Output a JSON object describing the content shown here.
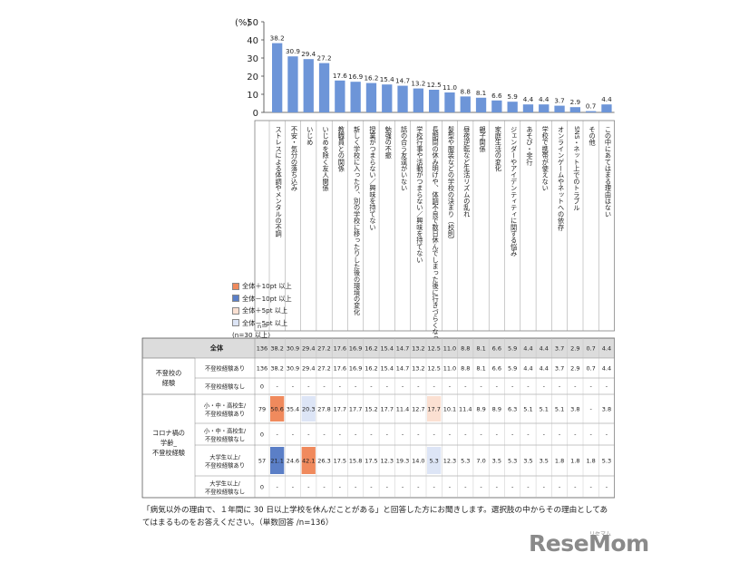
{
  "chart_data": {
    "type": "bar",
    "ylabel": "(%)",
    "ylim": [
      0,
      50
    ],
    "yticks": [
      0,
      10,
      20,
      30,
      40,
      50
    ],
    "bar_color": "#6d95d8",
    "categories": [
      "ストレスによる体調やメンタルの不調",
      "不安・気分の落ち込み",
      "いじめ",
      "いじめを除く友人関係",
      "教職員との関係",
      "新しく学校に入ったり、別の学校に移ったりした後の環境の変化",
      "授業がつまらない／興味を持てない",
      "勉強の不振",
      "話の合う友達がいない",
      "学校行事や活動がつまらない／興味を持てない",
      "長期間の休み明けや、体調不良で数日休んでしまった後に行きづらくなった",
      "髪型や服装などの学校の決まり（校則）",
      "昼夜逆転など生活リズムの乱れ",
      "親子関係",
      "家庭生活の変化",
      "ジェンダーやアイデンティティに関する悩み",
      "あそび・非行",
      "学校で携帯が使えない",
      "オンラインゲームやネットへの依存",
      "SNS・ネット上でのトラブル",
      "その他",
      "この中にあてはまる理由はない"
    ],
    "values": [
      38.2,
      30.9,
      29.4,
      27.2,
      17.6,
      16.9,
      16.2,
      15.4,
      14.7,
      13.2,
      12.5,
      11.0,
      8.8,
      8.1,
      6.6,
      5.9,
      4.4,
      4.4,
      3.7,
      2.9,
      0.7,
      4.4
    ],
    "value_labels": [
      "38.2",
      "30.9",
      "29.4",
      "27.2",
      "17.6",
      "16.9",
      "16.2",
      "15.4",
      "14.7",
      "13.2",
      "12.5",
      "11.0",
      "8.8",
      "8.1",
      "6.6",
      "5.9",
      "4.4",
      "4.4",
      "3.7",
      "2.9",
      "0.7",
      "4.4"
    ],
    "n_header": "n＝",
    "legend": [
      {
        "label": "全体＋10pt 以上",
        "color": "#f08a5d"
      },
      {
        "label": "全体－10pt 以上",
        "color": "#5b7fc7"
      },
      {
        "label": "全体＋5pt 以上",
        "color": "#fbe0d2"
      },
      {
        "label": "全体－5pt 以上",
        "color": "#dde5f6"
      },
      {
        "label": "(n=30 以上)",
        "color": ""
      }
    ],
    "table": {
      "rows": [
        {
          "group": "",
          "sub": "全体",
          "n": "136",
          "cells": [
            "38.2",
            "30.9",
            "29.4",
            "27.2",
            "17.6",
            "16.9",
            "16.2",
            "15.4",
            "14.7",
            "13.2",
            "12.5",
            "11.0",
            "8.8",
            "8.1",
            "6.6",
            "5.9",
            "4.4",
            "4.4",
            "3.7",
            "2.9",
            "0.7",
            "4.4"
          ],
          "hl": []
        },
        {
          "group": "不登校の経験",
          "sub": "不登校経験あり",
          "n": "136",
          "cells": [
            "38.2",
            "30.9",
            "29.4",
            "27.2",
            "17.6",
            "16.9",
            "16.2",
            "15.4",
            "14.7",
            "13.2",
            "12.5",
            "11.0",
            "8.8",
            "8.1",
            "6.6",
            "5.9",
            "4.4",
            "4.4",
            "3.7",
            "2.9",
            "0.7",
            "4.4"
          ],
          "hl": []
        },
        {
          "group": "",
          "sub": "不登校経験なし",
          "n": "0",
          "cells": [
            "-",
            "-",
            "-",
            "-",
            "-",
            "-",
            "-",
            "-",
            "-",
            "-",
            "-",
            "-",
            "-",
            "-",
            "-",
            "-",
            "-",
            "-",
            "-",
            "-",
            "-",
            "-"
          ],
          "hl": []
        },
        {
          "group": "コロナ禍の学齢_不登校経験",
          "sub": "小・中・高校生/不登校経験あり",
          "n": "79",
          "cells": [
            "50.6",
            "35.4",
            "20.3",
            "27.8",
            "17.7",
            "17.7",
            "15.2",
            "17.7",
            "11.4",
            "12.7",
            "17.7",
            "10.1",
            "11.4",
            "8.9",
            "8.9",
            "6.3",
            "5.1",
            "5.1",
            "5.1",
            "3.8",
            "-",
            "3.8"
          ],
          "hl": [
            "o10",
            "",
            "b5",
            "",
            "",
            "",
            "",
            "",
            "",
            "",
            "o5",
            "",
            "",
            "",
            "",
            "",
            "",
            "",
            "",
            "",
            "",
            ""
          ]
        },
        {
          "group": "",
          "sub": "小・中・高校生/不登校経験なし",
          "n": "0",
          "cells": [
            "-",
            "-",
            "-",
            "-",
            "-",
            "-",
            "-",
            "-",
            "-",
            "-",
            "-",
            "-",
            "-",
            "-",
            "-",
            "-",
            "-",
            "-",
            "-",
            "-",
            "-",
            "-"
          ],
          "hl": []
        },
        {
          "group": "",
          "sub": "大学生以上/不登校経験あり",
          "n": "57",
          "cells": [
            "21.1",
            "24.6",
            "42.1",
            "26.3",
            "17.5",
            "15.8",
            "17.5",
            "12.3",
            "19.3",
            "14.0",
            "5.3",
            "12.3",
            "5.3",
            "7.0",
            "3.5",
            "5.3",
            "3.5",
            "3.5",
            "1.8",
            "1.8",
            "1.8",
            "5.3"
          ],
          "hl": [
            "b10",
            "",
            "o10",
            "",
            "",
            "",
            "",
            "",
            "",
            "",
            "b5",
            "",
            "",
            "",
            "",
            "",
            "",
            "",
            "",
            "",
            "",
            ""
          ]
        },
        {
          "group": "",
          "sub": "大学生以上/不登校経験なし",
          "n": "0",
          "cells": [
            "-",
            "-",
            "-",
            "-",
            "-",
            "-",
            "-",
            "-",
            "-",
            "-",
            "-",
            "-",
            "-",
            "-",
            "-",
            "-",
            "-",
            "-",
            "-",
            "-",
            "-",
            "-"
          ],
          "hl": []
        }
      ]
    }
  },
  "footnote": "「病気以外の理由で、１年間に 30 日以上学校を休んだことがある」と回答した方にお聞きします。選択肢の中からその理由としてあてはまるものをお答えください。（単数回答 /n=136）",
  "logo": {
    "text": "ReseMom",
    "sub": "リセマム"
  }
}
